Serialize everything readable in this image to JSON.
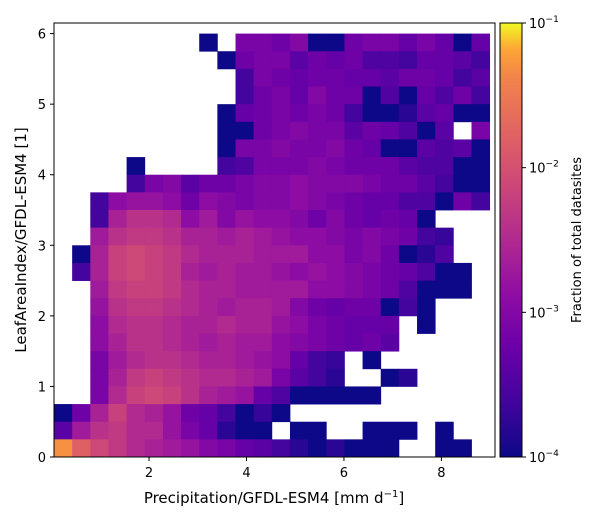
{
  "chart_data": {
    "type": "heatmap",
    "xlabel": "Precipitation/GFDL-ESM4 [mm d",
    "xlabel_sup": "−1",
    "xlabel_end": "]",
    "ylabel": "LeafAreaIndex/GFDL-ESM4 [1]",
    "colorbar_label": "Fraction of total datasites",
    "colormap": "plasma",
    "color_scale": "log",
    "color_range": [
      0.0001,
      0.1
    ],
    "xlim": [
      0.05,
      9.1
    ],
    "ylim": [
      0,
      6.15
    ],
    "x_ticks": [
      "2",
      "4",
      "6",
      "8"
    ],
    "y_ticks": [
      "0",
      "1",
      "2",
      "3",
      "4",
      "5",
      "6"
    ],
    "colorbar_ticks": [
      {
        "base": "10",
        "exp": "−1"
      },
      {
        "base": "10",
        "exp": "−2"
      },
      {
        "base": "10",
        "exp": "−3"
      },
      {
        "base": "10",
        "exp": "−4"
      }
    ],
    "bins": {
      "x_start": 0.05,
      "x_step": 0.3725,
      "nx": 24,
      "y_start": 0,
      "y_step": 0.25,
      "ny": 24
    },
    "grid_note": "rows from top (y high) to bottom (y low); cell value = log10(fraction), null = empty",
    "cells_log10": [
      [
        null,
        null,
        null,
        null,
        null,
        null,
        null,
        null,
        -4.0,
        null,
        -3.1,
        -3.1,
        -3.2,
        -3.0,
        -4.0,
        -4.0,
        -3.2,
        -3.1,
        -3.1,
        -3.3,
        -3.1,
        -3.3,
        -4.0,
        -3.3
      ],
      [
        null,
        null,
        null,
        null,
        null,
        null,
        null,
        null,
        null,
        -4.0,
        -3.2,
        -3.1,
        -3.1,
        -3.4,
        -3.2,
        -3.3,
        -3.2,
        -3.5,
        -3.5,
        -3.6,
        -3.3,
        -3.3,
        -3.4,
        -3.6
      ],
      [
        null,
        null,
        null,
        null,
        null,
        null,
        null,
        null,
        null,
        null,
        -3.6,
        -3.1,
        -3.2,
        -3.3,
        -3.2,
        -3.2,
        -3.3,
        -3.3,
        -3.4,
        -3.2,
        -3.2,
        -3.3,
        -3.6,
        -3.4
      ],
      [
        null,
        null,
        null,
        null,
        null,
        null,
        null,
        null,
        null,
        null,
        -3.6,
        -3.2,
        -3.1,
        -3.3,
        -3.0,
        -3.2,
        -3.2,
        -4.0,
        -3.5,
        -4.0,
        -3.3,
        -3.5,
        -3.2,
        -3.6
      ],
      [
        null,
        null,
        null,
        null,
        null,
        null,
        null,
        null,
        null,
        -4.0,
        -3.3,
        -3.2,
        -3.1,
        -3.2,
        -3.1,
        -3.2,
        -3.6,
        -4.0,
        -4.0,
        -3.8,
        -3.4,
        -3.3,
        -4.0,
        -4.0
      ],
      [
        null,
        null,
        null,
        null,
        null,
        null,
        null,
        null,
        null,
        -4.0,
        -4.0,
        -3.2,
        -3.1,
        -3.0,
        -3.1,
        -3.1,
        -3.4,
        -3.2,
        -3.3,
        -3.5,
        -4.0,
        -3.4,
        null,
        -3.1
      ],
      [
        null,
        null,
        null,
        null,
        null,
        null,
        null,
        null,
        null,
        -4.0,
        -3.1,
        -3.1,
        -3.0,
        -3.1,
        -3.1,
        -3.0,
        -3.2,
        -3.3,
        -4.0,
        -4.0,
        -3.4,
        -3.5,
        -3.4,
        -4.0
      ],
      [
        null,
        null,
        null,
        null,
        -4.0,
        null,
        null,
        null,
        null,
        -3.6,
        -3.5,
        -3.1,
        -3.1,
        -3.1,
        -3.0,
        -3.1,
        -3.2,
        -3.2,
        -3.2,
        -3.4,
        -3.5,
        -3.5,
        -4.0,
        -4.0
      ],
      [
        null,
        null,
        null,
        null,
        -3.6,
        -3.1,
        -3.0,
        -3.4,
        -3.2,
        -3.2,
        -3.1,
        -3.0,
        -3.0,
        -2.9,
        -3.0,
        -3.0,
        -3.0,
        -3.1,
        -3.2,
        -3.2,
        -3.4,
        -3.6,
        -4.0,
        -4.0
      ],
      [
        null,
        null,
        -3.6,
        -2.9,
        -2.8,
        -2.8,
        -2.9,
        -3.2,
        -2.9,
        -3.0,
        -3.1,
        -3.0,
        -3.0,
        -2.9,
        -3.0,
        -3.1,
        -3.2,
        -3.3,
        -3.3,
        -3.5,
        -3.5,
        -4.0,
        -3.2,
        -3.6
      ],
      [
        null,
        null,
        -3.6,
        -2.6,
        -2.4,
        -2.4,
        -2.5,
        -2.9,
        -2.7,
        -3.0,
        -2.8,
        -2.9,
        -2.9,
        -3.0,
        -3.2,
        -3.0,
        -3.2,
        -3.3,
        -3.2,
        -3.3,
        -4.0,
        null,
        null,
        null
      ],
      [
        null,
        null,
        -2.7,
        -2.4,
        -2.3,
        -2.3,
        -2.4,
        -2.6,
        -2.6,
        -2.7,
        -2.6,
        -2.7,
        -2.8,
        -2.9,
        -2.9,
        -3.0,
        -3.1,
        -3.0,
        -3.1,
        -3.2,
        -3.6,
        -3.7,
        null,
        null
      ],
      [
        null,
        -4.0,
        -2.6,
        -2.2,
        -2.1,
        -2.2,
        -2.3,
        -2.5,
        -2.6,
        -2.6,
        -2.6,
        -2.7,
        -2.7,
        -2.7,
        -2.9,
        -2.9,
        -3.1,
        -3.0,
        -3.2,
        -4.0,
        -3.8,
        -3.5,
        null,
        null
      ],
      [
        null,
        -3.6,
        -2.6,
        -2.2,
        -2.1,
        -2.2,
        -2.3,
        -2.6,
        -2.7,
        -2.6,
        -2.7,
        -2.7,
        -2.8,
        -2.9,
        -2.8,
        -2.9,
        -3.0,
        -3.1,
        -3.2,
        -3.3,
        -3.5,
        -4.0,
        -4.0,
        null
      ],
      [
        null,
        null,
        -2.7,
        -2.3,
        -2.2,
        -2.2,
        -2.3,
        -2.5,
        -2.6,
        -2.6,
        -2.7,
        -2.7,
        -2.7,
        -2.7,
        -2.9,
        -2.9,
        -3.0,
        -3.1,
        -3.2,
        -3.5,
        -4.0,
        -4.0,
        -4.0,
        null
      ],
      [
        null,
        null,
        -2.8,
        -2.4,
        -2.3,
        -2.3,
        -2.4,
        -2.5,
        -2.6,
        -2.7,
        -2.6,
        -2.6,
        -2.7,
        -3.0,
        -3.2,
        -3.3,
        -3.2,
        -3.2,
        -4.0,
        -3.6,
        -4.0,
        null,
        null,
        null
      ],
      [
        null,
        null,
        -2.9,
        -2.5,
        -2.4,
        -2.4,
        -2.5,
        -2.6,
        -2.6,
        -2.5,
        -2.6,
        -2.6,
        -2.8,
        -2.9,
        -3.1,
        -3.2,
        -3.3,
        -3.3,
        -3.3,
        null,
        -4.0,
        null,
        null,
        null
      ],
      [
        null,
        null,
        -2.9,
        -2.6,
        -2.4,
        -2.4,
        -2.5,
        -2.6,
        -2.7,
        -2.6,
        -2.7,
        -2.7,
        -2.9,
        -3.0,
        -3.1,
        -3.2,
        -3.3,
        -3.2,
        -3.4,
        null,
        null,
        null,
        null,
        null
      ],
      [
        null,
        null,
        -3.1,
        -2.7,
        -2.5,
        -2.4,
        -2.4,
        -2.5,
        -2.6,
        -2.6,
        -2.7,
        -2.8,
        -2.9,
        -3.3,
        -3.6,
        -3.7,
        null,
        -4.0,
        null,
        null,
        null,
        null,
        null,
        null
      ],
      [
        null,
        null,
        -3.1,
        -2.6,
        -2.3,
        -2.2,
        -2.3,
        -2.4,
        -2.5,
        -2.5,
        -2.6,
        -2.7,
        -3.1,
        -3.4,
        -3.6,
        -3.8,
        null,
        null,
        -4.0,
        -3.8,
        null,
        null,
        null,
        null
      ],
      [
        null,
        null,
        -3.1,
        -2.5,
        -2.2,
        -2.1,
        -2.2,
        -2.4,
        -2.6,
        -2.7,
        -2.8,
        -3.3,
        -3.5,
        -4.0,
        -4.0,
        -4.0,
        -4.0,
        -4.0,
        null,
        null,
        null,
        null,
        null,
        null
      ],
      [
        -4.0,
        -3.2,
        -2.6,
        -2.2,
        -2.5,
        -2.6,
        -2.8,
        -3.2,
        -3.3,
        -3.6,
        -4.0,
        -3.7,
        -4.0,
        null,
        null,
        null,
        null,
        null,
        null,
        null,
        null,
        null,
        null,
        null
      ],
      [
        -3.4,
        -2.7,
        -2.4,
        -2.3,
        -2.5,
        -2.5,
        -2.8,
        -3.1,
        -3.3,
        -3.8,
        -4.0,
        -4.0,
        null,
        -4.0,
        -4.0,
        null,
        null,
        -4.0,
        -4.0,
        -4.0,
        null,
        -4.0,
        null,
        null
      ],
      [
        -1.3,
        -1.8,
        -2.1,
        -2.3,
        -2.5,
        -2.6,
        -2.7,
        -2.8,
        -3.0,
        -3.1,
        -3.3,
        -3.4,
        -3.6,
        -3.8,
        -4.0,
        -3.8,
        -4.0,
        -4.0,
        -4.0,
        null,
        null,
        -4.0,
        -4.0,
        null
      ]
    ]
  }
}
